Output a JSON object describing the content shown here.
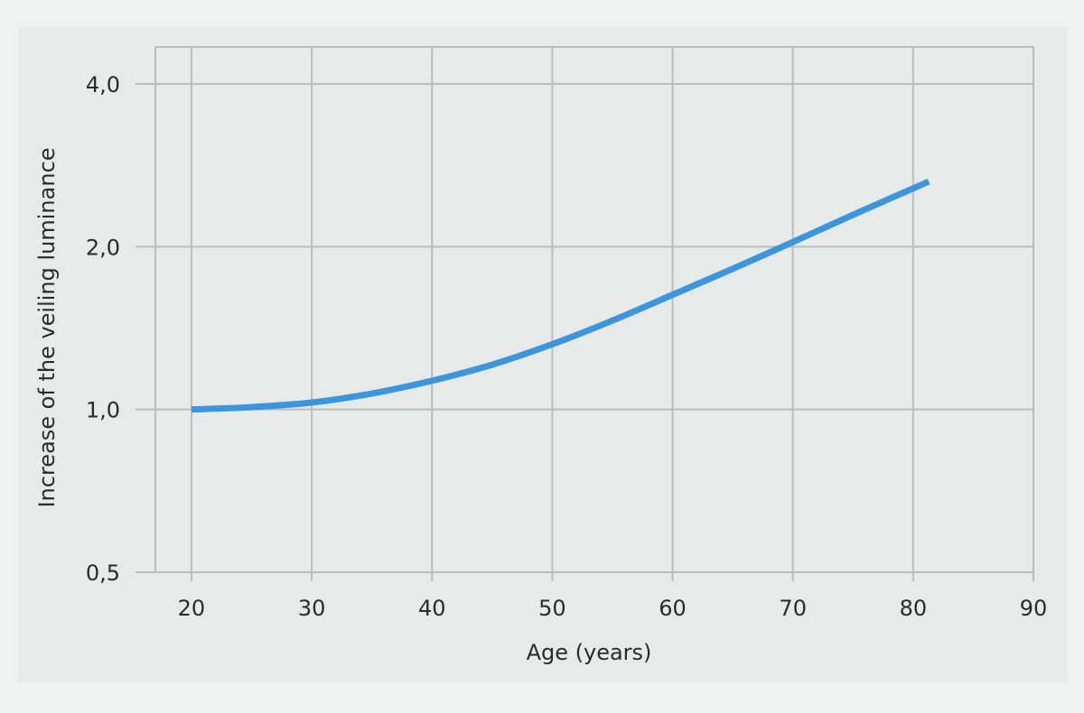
{
  "chart_data": {
    "type": "line",
    "title": "",
    "xlabel": "Age (years)",
    "ylabel": "Increase of the veiling luminance",
    "x_scale": "linear",
    "y_scale": "log2",
    "xlim": [
      17,
      90
    ],
    "ylim": [
      0.5,
      4.0
    ],
    "x_ticks": [
      20,
      30,
      40,
      50,
      60,
      70,
      80,
      90
    ],
    "x_tick_labels": [
      "20",
      "30",
      "40",
      "50",
      "60",
      "70",
      "80",
      "90"
    ],
    "y_ticks": [
      0.5,
      1.0,
      2.0,
      4.0
    ],
    "y_tick_labels": [
      "0,5",
      "1,0",
      "2,0",
      "4,0"
    ],
    "grid": true,
    "legend": "none",
    "series": [
      {
        "color": "#3d95db",
        "x": [
          20,
          25,
          30,
          35,
          40,
          45,
          50,
          55,
          60,
          65,
          70,
          75,
          81.3
        ],
        "y": [
          1.0,
          1.01,
          1.03,
          1.07,
          1.13,
          1.21,
          1.32,
          1.46,
          1.63,
          1.82,
          2.04,
          2.29,
          2.64
        ]
      }
    ]
  }
}
